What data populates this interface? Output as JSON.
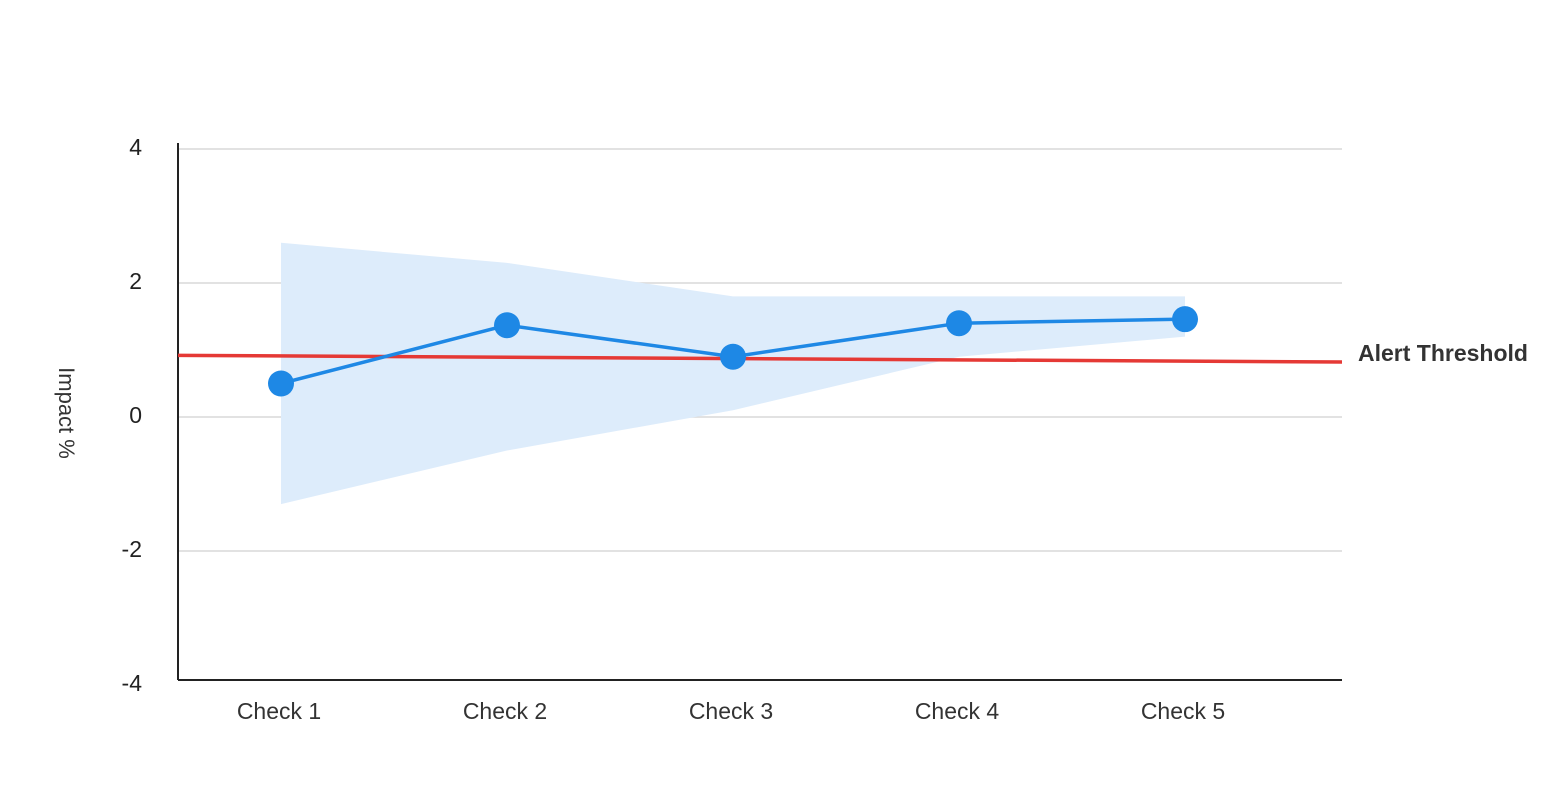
{
  "chart_data": {
    "type": "line",
    "y_label": "Impact %",
    "categories": [
      "Check 1",
      "Check 2",
      "Check 3",
      "Check 4",
      "Check 5"
    ],
    "series": [
      {
        "name": "Impact",
        "color": "#1e88e5",
        "values": [
          0.5,
          1.37,
          0.9,
          1.4,
          1.46
        ]
      }
    ],
    "band": {
      "color": "#ddecfb",
      "upper": [
        2.6,
        2.3,
        1.8,
        1.8,
        1.8
      ],
      "lower": [
        -1.3,
        -0.5,
        0.1,
        0.9,
        1.2
      ]
    },
    "threshold": {
      "label": "Alert Threshold",
      "color": "#e53935",
      "values": [
        0.92,
        0.82
      ]
    },
    "ylim": [
      -4,
      4
    ],
    "yticks": [
      -4,
      -2,
      0,
      2,
      4
    ],
    "grid": true
  }
}
